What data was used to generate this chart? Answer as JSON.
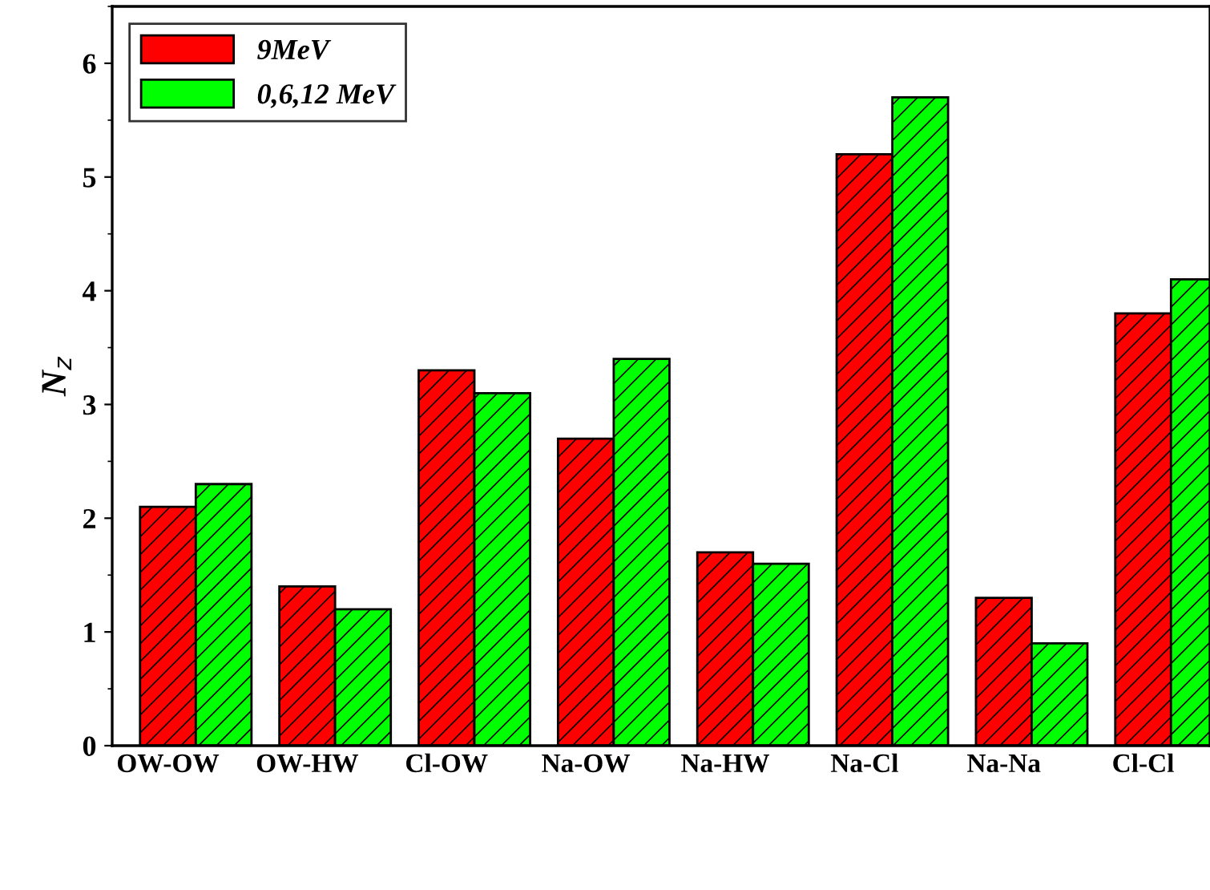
{
  "chart_data": {
    "type": "bar",
    "ylabel": "N$_{z}$",
    "categories": [
      "OW-OW",
      "OW-HW",
      "Cl-OW",
      "Na-OW",
      "Na-HW",
      "Na-Cl",
      "Na-Na",
      "Cl-Cl"
    ],
    "series": [
      {
        "name": "9MeV",
        "color": "#ff0000",
        "values": [
          2.1,
          1.4,
          3.3,
          2.7,
          1.7,
          5.2,
          1.3,
          3.8
        ]
      },
      {
        "name": "0,6,12 MeV",
        "color": "#00ff00",
        "values": [
          2.3,
          1.2,
          3.1,
          3.4,
          1.6,
          5.7,
          0.9,
          4.1
        ]
      }
    ],
    "ylim": [
      0,
      6.5
    ],
    "yticks": [
      0,
      1,
      2,
      3,
      4,
      5,
      6
    ],
    "grid": false,
    "legend": "top left"
  }
}
